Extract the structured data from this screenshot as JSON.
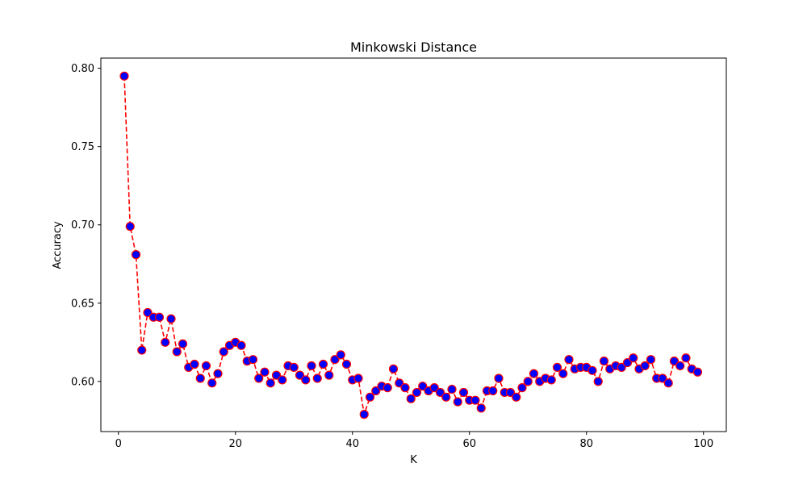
{
  "chart_data": {
    "type": "line",
    "title": "Minkowski Distance",
    "xlabel": "K",
    "ylabel": "Accuracy",
    "xlim": [
      -3,
      103.9
    ],
    "ylim": [
      0.568,
      0.8065
    ],
    "x_ticks": [
      0,
      20,
      40,
      60,
      80,
      100
    ],
    "y_ticks": [
      0.6,
      0.65,
      0.7,
      0.75,
      0.8
    ],
    "grid": false,
    "legend": "none",
    "line_style": "dashed",
    "colors": {
      "line": "#ff0000",
      "marker_fill": "#0000ff",
      "marker_edge": "#ff0000"
    },
    "series": [
      {
        "x": [
          1,
          2,
          3,
          4,
          5,
          6,
          7,
          8,
          9,
          10,
          11,
          12,
          13,
          14,
          15,
          16,
          17,
          18,
          19,
          20,
          21,
          22,
          23,
          24,
          25,
          26,
          27,
          28,
          29,
          30,
          31,
          32,
          33,
          34,
          35,
          36,
          37,
          38,
          39,
          40,
          41,
          42,
          43,
          44,
          45,
          46,
          47,
          48,
          49,
          50,
          51,
          52,
          53,
          54,
          55,
          56,
          57,
          58,
          59,
          60,
          61,
          62,
          63,
          64,
          65,
          66,
          67,
          68,
          69,
          70,
          71,
          72,
          73,
          74,
          75,
          76,
          77,
          78,
          79,
          80,
          81,
          82,
          83,
          84,
          85,
          86,
          87,
          88,
          89,
          90,
          91,
          92,
          93,
          94,
          95,
          96,
          97,
          98,
          99
        ],
        "values": [
          0.795,
          0.699,
          0.681,
          0.62,
          0.644,
          0.641,
          0.641,
          0.625,
          0.64,
          0.619,
          0.624,
          0.609,
          0.611,
          0.602,
          0.61,
          0.599,
          0.605,
          0.619,
          0.623,
          0.625,
          0.623,
          0.613,
          0.614,
          0.602,
          0.606,
          0.599,
          0.604,
          0.601,
          0.61,
          0.609,
          0.604,
          0.601,
          0.61,
          0.602,
          0.611,
          0.604,
          0.614,
          0.617,
          0.611,
          0.601,
          0.602,
          0.579,
          0.59,
          0.594,
          0.597,
          0.596,
          0.608,
          0.599,
          0.596,
          0.589,
          0.593,
          0.597,
          0.594,
          0.596,
          0.593,
          0.59,
          0.595,
          0.587,
          0.593,
          0.588,
          0.588,
          0.583,
          0.594,
          0.594,
          0.602,
          0.593,
          0.593,
          0.59,
          0.596,
          0.6,
          0.605,
          0.6,
          0.602,
          0.601,
          0.609,
          0.605,
          0.614,
          0.608,
          0.609,
          0.609,
          0.607,
          0.6,
          0.613,
          0.608,
          0.61,
          0.609,
          0.612,
          0.615,
          0.608,
          0.61,
          0.614,
          0.602,
          0.602,
          0.599,
          0.613,
          0.61,
          0.615,
          0.608,
          0.606
        ]
      }
    ]
  }
}
